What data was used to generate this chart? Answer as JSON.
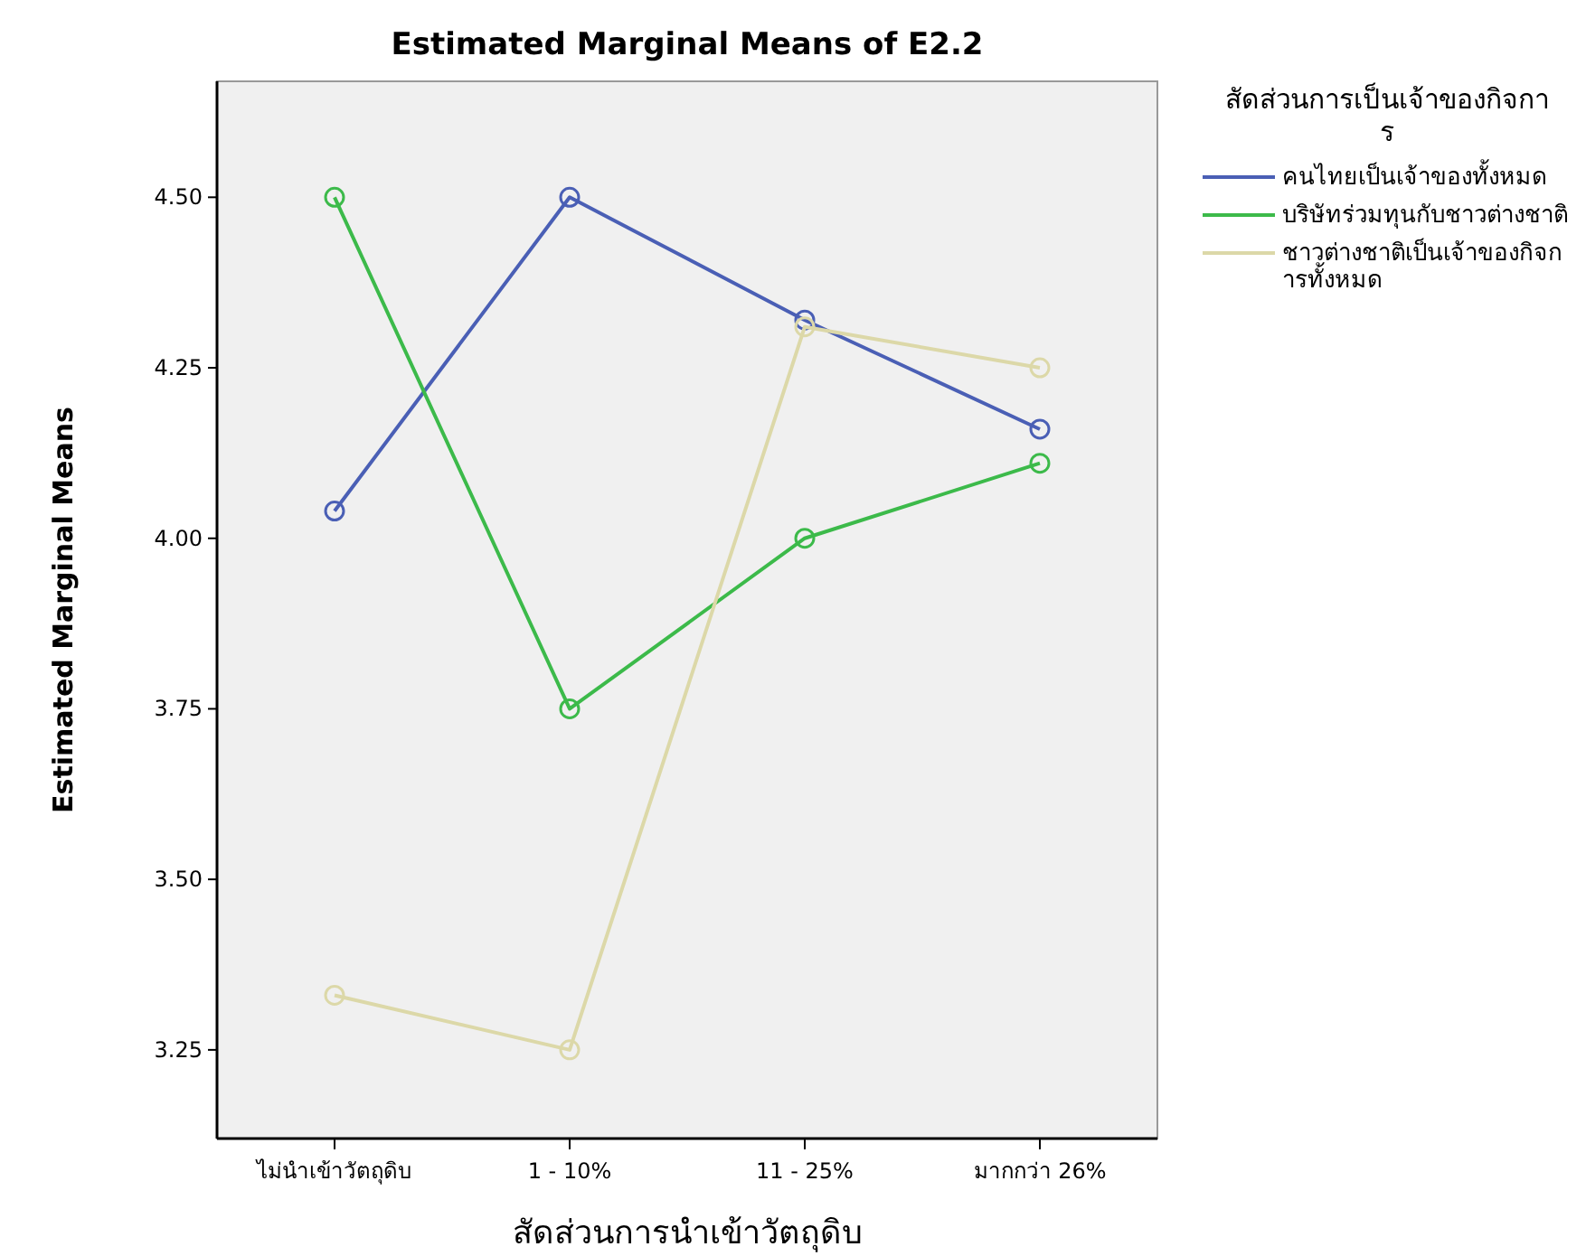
{
  "chart_data": {
    "type": "line",
    "title": "Estimated Marginal Means of E2.2",
    "xlabel": "สัดส่วนการนำเข้าวัตถุดิบ",
    "ylabel": "Estimated Marginal Means",
    "legend_title": "สัดส่วนการเป็นเจ้าของกิจการ",
    "categories": [
      "ไม่นำเข้าวัตถุดิบ",
      "1 - 10%",
      "11 - 25%",
      "มากกว่า 26%"
    ],
    "series": [
      {
        "name": "คนไทยเป็นเจ้าของทั้งหมด",
        "color": "#4a5fb5",
        "values": [
          4.04,
          4.5,
          4.32,
          4.16
        ]
      },
      {
        "name": "บริษัทร่วมทุนกับชาวต่างชาติ",
        "color": "#3cba4a",
        "values": [
          4.5,
          3.75,
          4.0,
          4.11
        ]
      },
      {
        "name": "ชาวต่างชาติเป็นเจ้าของกิจการทั้งหมด",
        "color": "#dcd8a8",
        "values": [
          3.33,
          3.25,
          4.31,
          4.25
        ]
      }
    ],
    "ylim": [
      3.12,
      4.67
    ],
    "yticks": [
      {
        "value": 3.25,
        "label": "3.25"
      },
      {
        "value": 3.5,
        "label": "3.50"
      },
      {
        "value": 3.75,
        "label": "3.75"
      },
      {
        "value": 4.0,
        "label": "4.00"
      },
      {
        "value": 4.25,
        "label": "4.25"
      },
      {
        "value": 4.5,
        "label": "4.50"
      }
    ],
    "legend": "right",
    "marker": "circle"
  }
}
